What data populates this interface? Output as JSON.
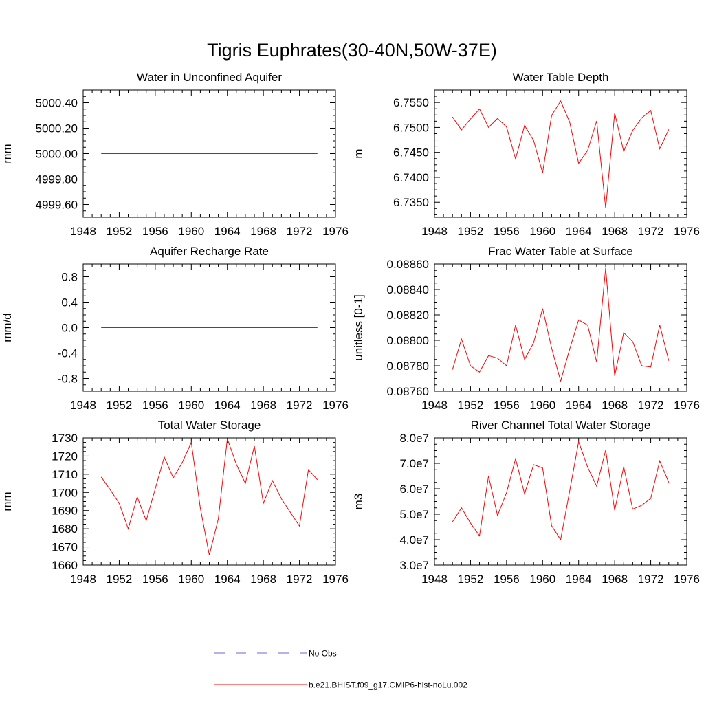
{
  "figure": {
    "title": "Tigris Euphrates(30-40N,50W-37E)",
    "line_color": "#ff0000",
    "obs_color": "#6a6acd"
  },
  "legend": {
    "placement": "bottom-center",
    "entries": [
      {
        "label": "No Obs",
        "style": "dashed",
        "color": "#6a6acd"
      },
      {
        "label": "b.e21.BHIST.f09_g17.CMIP6-hist-noLu.002",
        "style": "solid",
        "color": "#ff0000"
      }
    ]
  },
  "chart_data": [
    {
      "type": "line",
      "title": "Water in Unconfined Aquifer",
      "ylabel": "mm",
      "xlim": [
        1948,
        1976
      ],
      "ylim": [
        4999.5,
        5000.5
      ],
      "xticks": [
        "1948",
        "1952",
        "1956",
        "1960",
        "1964",
        "1968",
        "1972",
        "1976"
      ],
      "yticks": [
        {
          "value": 4999.6,
          "label": "4999.60"
        },
        {
          "value": 4999.8,
          "label": "4999.80"
        },
        {
          "value": 5000.0,
          "label": "5000.00"
        },
        {
          "value": 5000.2,
          "label": "5000.20"
        },
        {
          "value": 5000.4,
          "label": "5000.40"
        }
      ],
      "x": [
        1950,
        1951,
        1952,
        1953,
        1954,
        1955,
        1956,
        1957,
        1958,
        1959,
        1960,
        1961,
        1962,
        1963,
        1964,
        1965,
        1966,
        1967,
        1968,
        1969,
        1970,
        1971,
        1972,
        1973,
        1974
      ],
      "values": [
        5000,
        5000,
        5000,
        5000,
        5000,
        5000,
        5000,
        5000,
        5000,
        5000,
        5000,
        5000,
        5000,
        5000,
        5000,
        5000,
        5000,
        5000,
        5000,
        5000,
        5000,
        5000,
        5000,
        5000,
        5000
      ]
    },
    {
      "type": "line",
      "title": "Water Table Depth",
      "ylabel": "m",
      "xlim": [
        1948,
        1976
      ],
      "ylim": [
        6.732,
        6.7575
      ],
      "xticks": [
        "1948",
        "1952",
        "1956",
        "1960",
        "1964",
        "1968",
        "1972",
        "1976"
      ],
      "yticks": [
        {
          "value": 6.735,
          "label": "6.7350"
        },
        {
          "value": 6.74,
          "label": "6.7400"
        },
        {
          "value": 6.745,
          "label": "6.7450"
        },
        {
          "value": 6.75,
          "label": "6.7500"
        },
        {
          "value": 6.755,
          "label": "6.7550"
        }
      ],
      "x": [
        1950,
        1951,
        1952,
        1953,
        1954,
        1955,
        1956,
        1957,
        1958,
        1959,
        1960,
        1961,
        1962,
        1963,
        1964,
        1965,
        1966,
        1967,
        1968,
        1969,
        1970,
        1971,
        1972,
        1973,
        1974
      ],
      "values": [
        6.7521,
        6.7495,
        6.7517,
        6.7537,
        6.75,
        6.7518,
        6.7501,
        6.7437,
        6.7504,
        6.7474,
        6.7409,
        6.7524,
        6.7553,
        6.7511,
        6.7428,
        6.7454,
        6.7513,
        6.7338,
        6.7529,
        6.7452,
        6.7494,
        6.7519,
        6.7534,
        6.7457,
        6.7496
      ]
    },
    {
      "type": "line",
      "title": "Aquifer Recharge Rate",
      "ylabel": "mm/d",
      "xlim": [
        1948,
        1976
      ],
      "ylim": [
        -1.0,
        1.0
      ],
      "xticks": [
        "1948",
        "1952",
        "1956",
        "1960",
        "1964",
        "1968",
        "1972",
        "1976"
      ],
      "yticks": [
        {
          "value": -0.8,
          "label": "-0.8"
        },
        {
          "value": -0.4,
          "label": "-0.4"
        },
        {
          "value": 0.0,
          "label": "0.0"
        },
        {
          "value": 0.4,
          "label": "0.4"
        },
        {
          "value": 0.8,
          "label": "0.8"
        }
      ],
      "x": [
        1950,
        1951,
        1952,
        1953,
        1954,
        1955,
        1956,
        1957,
        1958,
        1959,
        1960,
        1961,
        1962,
        1963,
        1964,
        1965,
        1966,
        1967,
        1968,
        1969,
        1970,
        1971,
        1972,
        1973,
        1974
      ],
      "values": [
        0,
        0,
        0,
        0,
        0,
        0,
        0,
        0,
        0,
        0,
        0,
        0,
        0,
        0,
        0,
        0,
        0,
        0,
        0,
        0,
        0,
        0,
        0,
        0,
        0
      ]
    },
    {
      "type": "line",
      "title": "Frac Water Table at Surface",
      "ylabel": "unitless [0-1]",
      "xlim": [
        1948,
        1976
      ],
      "ylim": [
        0.0876,
        0.0886
      ],
      "xticks": [
        "1948",
        "1952",
        "1956",
        "1960",
        "1964",
        "1968",
        "1972",
        "1976"
      ],
      "yticks": [
        {
          "value": 0.0876,
          "label": "0.08760"
        },
        {
          "value": 0.0878,
          "label": "0.08780"
        },
        {
          "value": 0.088,
          "label": "0.08800"
        },
        {
          "value": 0.0882,
          "label": "0.08820"
        },
        {
          "value": 0.0884,
          "label": "0.08840"
        },
        {
          "value": 0.0886,
          "label": "0.08860"
        }
      ],
      "x": [
        1950,
        1951,
        1952,
        1953,
        1954,
        1955,
        1956,
        1957,
        1958,
        1959,
        1960,
        1961,
        1962,
        1963,
        1964,
        1965,
        1966,
        1967,
        1968,
        1969,
        1970,
        1971,
        1972,
        1973,
        1974
      ],
      "values": [
        0.08777,
        0.08801,
        0.0878,
        0.08775,
        0.08788,
        0.08786,
        0.0878,
        0.08812,
        0.08785,
        0.08798,
        0.08825,
        0.08794,
        0.08768,
        0.08793,
        0.08816,
        0.08812,
        0.08783,
        0.08857,
        0.08772,
        0.08806,
        0.08799,
        0.0878,
        0.08779,
        0.08812,
        0.08784
      ]
    },
    {
      "type": "line",
      "title": "Total Water Storage",
      "ylabel": "mm",
      "xlim": [
        1948,
        1976
      ],
      "ylim": [
        1660,
        1730
      ],
      "xticks": [
        "1948",
        "1952",
        "1956",
        "1960",
        "1964",
        "1968",
        "1972",
        "1976"
      ],
      "yticks": [
        {
          "value": 1660,
          "label": "1660"
        },
        {
          "value": 1670,
          "label": "1670"
        },
        {
          "value": 1680,
          "label": "1680"
        },
        {
          "value": 1690,
          "label": "1690"
        },
        {
          "value": 1700,
          "label": "1700"
        },
        {
          "value": 1710,
          "label": "1710"
        },
        {
          "value": 1720,
          "label": "1720"
        },
        {
          "value": 1730,
          "label": "1730"
        }
      ],
      "x": [
        1950,
        1951,
        1952,
        1953,
        1954,
        1955,
        1956,
        1957,
        1958,
        1959,
        1960,
        1961,
        1962,
        1963,
        1964,
        1965,
        1966,
        1967,
        1968,
        1969,
        1970,
        1971,
        1972,
        1973,
        1974
      ],
      "values": [
        1708.5,
        1701.5,
        1694,
        1680,
        1697.5,
        1684.5,
        1702,
        1719.5,
        1708,
        1716.5,
        1727.5,
        1691.5,
        1665.5,
        1685.5,
        1729.5,
        1715.5,
        1705,
        1725.5,
        1694,
        1706.5,
        1696.5,
        1689,
        1681.5,
        1712.5,
        1707
      ]
    },
    {
      "type": "line",
      "title": "River Channel Total Water Storage",
      "ylabel": "m3",
      "xlim": [
        1948,
        1976
      ],
      "ylim": [
        30000000,
        80000000
      ],
      "xticks": [
        "1948",
        "1952",
        "1956",
        "1960",
        "1964",
        "1968",
        "1972",
        "1976"
      ],
      "yticks": [
        {
          "value": 30000000,
          "label": "3.0e7"
        },
        {
          "value": 40000000,
          "label": "4.0e7"
        },
        {
          "value": 50000000,
          "label": "5.0e7"
        },
        {
          "value": 60000000,
          "label": "6.0e7"
        },
        {
          "value": 70000000,
          "label": "7.0e7"
        },
        {
          "value": 80000000,
          "label": "8.0e7"
        }
      ],
      "x": [
        1950,
        1951,
        1952,
        1953,
        1954,
        1955,
        1956,
        1957,
        1958,
        1959,
        1960,
        1961,
        1962,
        1963,
        1964,
        1965,
        1966,
        1967,
        1968,
        1969,
        1970,
        1971,
        1972,
        1973,
        1974
      ],
      "values": [
        47000000,
        52500000,
        46500000,
        41500000,
        65000000,
        49500000,
        58500000,
        71800000,
        58000000,
        69500000,
        68200000,
        45500000,
        40000000,
        59000000,
        78500000,
        68500000,
        61000000,
        75200000,
        51500000,
        68700000,
        52000000,
        53500000,
        56200000,
        71000000,
        62500000
      ]
    }
  ]
}
